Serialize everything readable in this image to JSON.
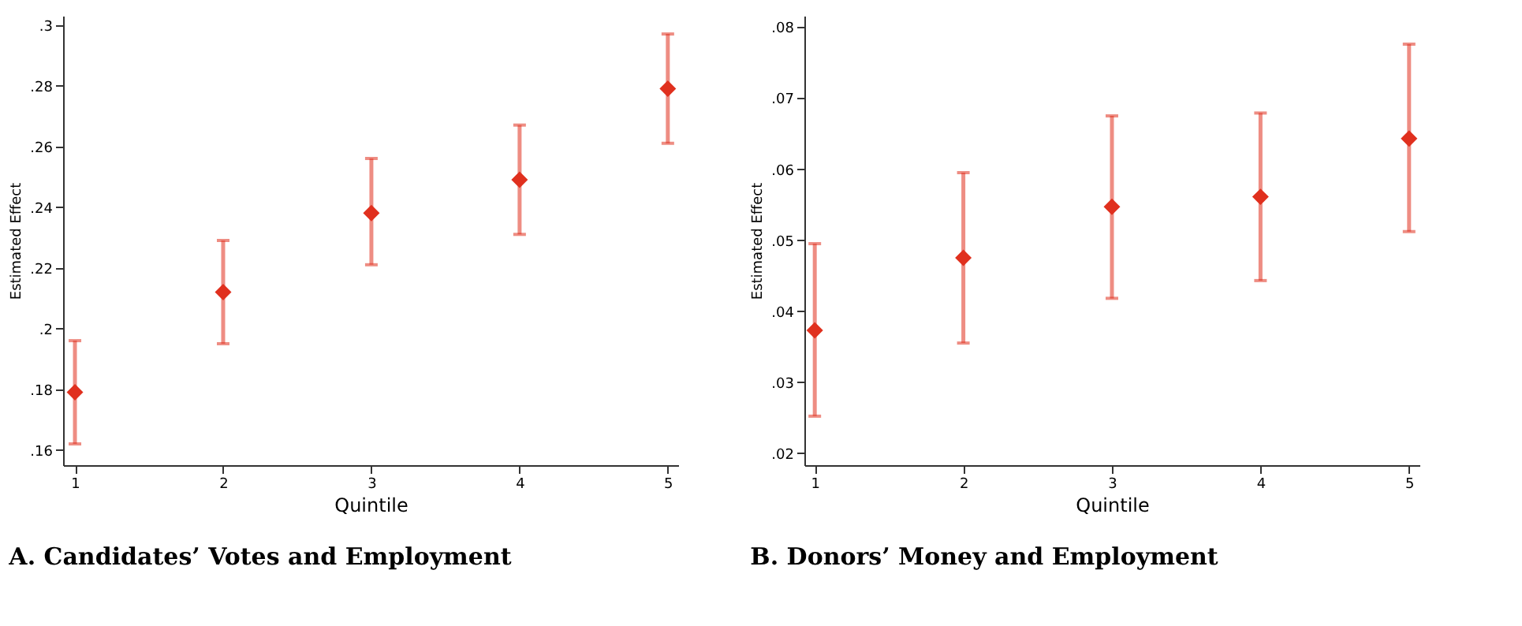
{
  "chart_data": [
    {
      "type": "scatter",
      "title": "A. Candidates’ Votes and Employment",
      "xlabel": "Quintile",
      "ylabel": "Estimated Effect",
      "x": [
        1,
        2,
        3,
        4,
        5
      ],
      "series": [
        {
          "color": "#e0301e",
          "values": [
            0.179,
            0.212,
            0.238,
            0.249,
            0.279
          ],
          "errors": [
            [
              0.162,
              0.196
            ],
            [
              0.195,
              0.229
            ],
            [
              0.221,
              0.256
            ],
            [
              0.231,
              0.267
            ],
            [
              0.261,
              0.297
            ]
          ]
        }
      ],
      "xlim": [
        0.92,
        5.07
      ],
      "xticks": [
        1,
        2,
        3,
        4,
        5
      ],
      "ylim": [
        0.155,
        0.303
      ],
      "yticks": [
        {
          "value": 0.16,
          "label": ".16"
        },
        {
          "value": 0.18,
          "label": ".18"
        },
        {
          "value": 0.2,
          "label": ".2"
        },
        {
          "value": 0.22,
          "label": ".22"
        },
        {
          "value": 0.24,
          "label": ".24"
        },
        {
          "value": 0.26,
          "label": ".26"
        },
        {
          "value": 0.28,
          "label": ".28"
        },
        {
          "value": 0.3,
          "label": ".3"
        }
      ],
      "marker": "diamond",
      "grid": false
    },
    {
      "type": "scatter",
      "title": "B. Donors’ Money and Employment",
      "xlabel": "Quintile",
      "ylabel": "Estimated Effect",
      "x": [
        1,
        2,
        3,
        4,
        5
      ],
      "series": [
        {
          "color": "#e0301e",
          "values": [
            0.0373,
            0.0475,
            0.0547,
            0.0561,
            0.0643
          ],
          "errors": [
            [
              0.0252,
              0.0495
            ],
            [
              0.0355,
              0.0595
            ],
            [
              0.0418,
              0.0675
            ],
            [
              0.0443,
              0.0679
            ],
            [
              0.0512,
              0.0776
            ]
          ]
        }
      ],
      "xlim": [
        0.93,
        5.07
      ],
      "xticks": [
        1,
        2,
        3,
        4,
        5
      ],
      "ylim": [
        0.0183,
        0.0816
      ],
      "yticks": [
        {
          "value": 0.02,
          "label": ".02"
        },
        {
          "value": 0.03,
          "label": ".03"
        },
        {
          "value": 0.04,
          "label": ".04"
        },
        {
          "value": 0.05,
          "label": ".05"
        },
        {
          "value": 0.06,
          "label": ".06"
        },
        {
          "value": 0.07,
          "label": ".07"
        },
        {
          "value": 0.08,
          "label": ".08"
        }
      ],
      "marker": "diamond",
      "grid": false
    }
  ]
}
